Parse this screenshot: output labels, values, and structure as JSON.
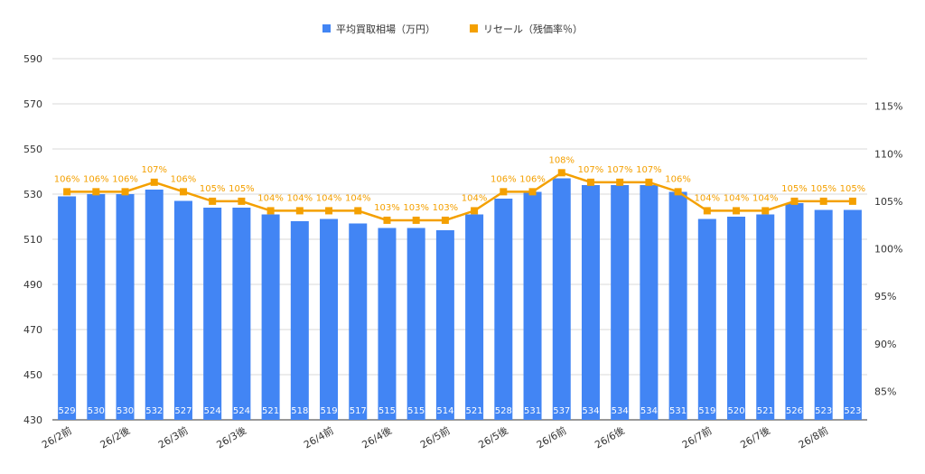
{
  "chart_data": {
    "type": "bar",
    "combo": "bar+line",
    "categories": [
      "26/2前",
      "",
      "26/2後",
      "",
      "26/3前",
      "",
      "26/3後",
      "",
      "",
      "26/4前",
      "",
      "26/4後",
      "",
      "26/5前",
      "",
      "26/5後",
      "",
      "26/6前",
      "",
      "26/6後",
      "",
      "",
      "26/7前",
      "",
      "26/7後",
      "",
      "26/8前",
      ""
    ],
    "series": [
      {
        "name": "平均買取相場（万円）",
        "type": "bar",
        "axis": "left",
        "color": "#4285F4",
        "values": [
          529,
          530,
          530,
          532,
          527,
          524,
          524,
          521,
          518,
          519,
          517,
          515,
          515,
          514,
          521,
          528,
          531,
          537,
          534,
          534,
          534,
          531,
          519,
          520,
          521,
          526,
          523,
          523
        ]
      },
      {
        "name": "リセール（残価率％）",
        "type": "line",
        "axis": "right",
        "color": "#F4A000",
        "values": [
          106,
          106,
          106,
          107,
          106,
          105,
          105,
          104,
          104,
          104,
          104,
          103,
          103,
          103,
          104,
          106,
          106,
          108,
          107,
          107,
          107,
          106,
          104,
          104,
          104,
          105,
          105,
          105
        ]
      }
    ],
    "left_axis": {
      "min": 430,
      "max": 590,
      "ticks": [
        430,
        450,
        470,
        490,
        510,
        530,
        550,
        570,
        590
      ]
    },
    "right_axis": {
      "min": 82,
      "max": 120,
      "ticks": [
        85,
        90,
        95,
        100,
        105,
        110,
        115
      ],
      "tick_suffix": "%"
    },
    "legend_position": "top-center",
    "grid": true
  }
}
